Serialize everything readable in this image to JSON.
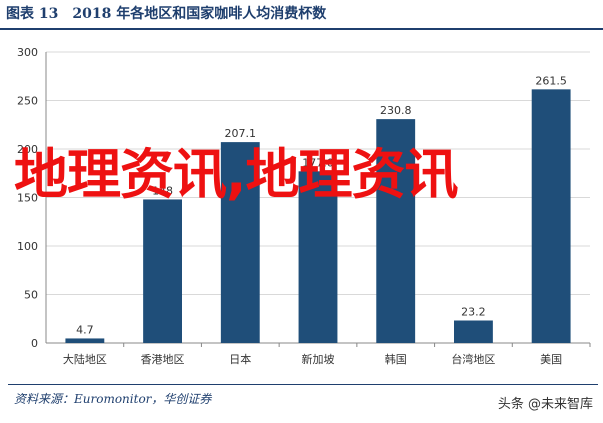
{
  "header": {
    "title": "图表 13　2018 年各地区和国家咖啡人均消费杯数"
  },
  "footer": {
    "source": "资料来源：Euromonitor，华创证券"
  },
  "watermark": {
    "text": "地理资讯,地理资讯"
  },
  "attribution": {
    "text": "头条 @未来智库"
  },
  "colors": {
    "bar": "#1f4e79",
    "axis": "#888888",
    "grid": "#d9d9d9",
    "text": "#333333"
  },
  "chart_data": {
    "type": "bar",
    "categories": [
      "大陆地区",
      "香港地区",
      "日本",
      "新加坡",
      "韩国",
      "台湾地区",
      "美国"
    ],
    "values": [
      4.7,
      148,
      207.1,
      177.0,
      230.8,
      23.2,
      261.5
    ],
    "data_labels": [
      "4.7",
      "148",
      "207.1",
      "177.0",
      "230.8",
      "23.2",
      "261.5"
    ],
    "ylim": [
      0,
      300
    ],
    "yticks": [
      "0",
      "50",
      "100",
      "150",
      "200",
      "250",
      "300"
    ],
    "grid": true
  }
}
